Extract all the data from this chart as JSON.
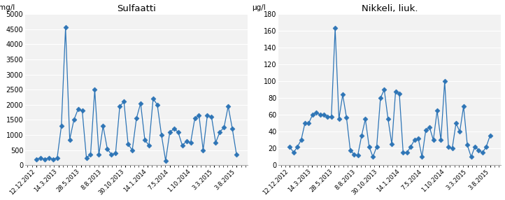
{
  "sulfaatti": {
    "title": "Sulfaatti",
    "ylabel": "mg/l",
    "ylim": [
      0,
      5000
    ],
    "yticks": [
      0,
      500,
      1000,
      1500,
      2000,
      2500,
      3000,
      3500,
      4000,
      4500,
      5000
    ],
    "values": [
      200,
      250,
      200,
      250,
      200,
      250,
      1300,
      4550,
      850,
      1500,
      1850,
      1800,
      250,
      350,
      2500,
      350,
      1300,
      550,
      350,
      400,
      1950,
      2100,
      700,
      500,
      1550,
      2050,
      850,
      650,
      2200,
      2000,
      1000,
      150,
      1100,
      1200,
      1100,
      650,
      800,
      750,
      1550,
      1650,
      500,
      1650,
      1600,
      750,
      1100,
      1250,
      1950,
      1200,
      350
    ]
  },
  "nikkeli": {
    "title": "Nikkeli, liuk.",
    "ylabel": "μg/l",
    "ylim": [
      0,
      180
    ],
    "yticks": [
      0,
      20,
      40,
      60,
      80,
      100,
      120,
      140,
      160,
      180
    ],
    "values": [
      22,
      15,
      22,
      30,
      50,
      50,
      60,
      63,
      60,
      60,
      58,
      58,
      163,
      55,
      84,
      57,
      18,
      13,
      12,
      35,
      55,
      22,
      10,
      22,
      80,
      90,
      55,
      25,
      88,
      85,
      15,
      15,
      22,
      30,
      32,
      10,
      42,
      45,
      30,
      65,
      30,
      100,
      22,
      20,
      50,
      40,
      70,
      24,
      10,
      22,
      18,
      15,
      22,
      35
    ]
  },
  "xtick_labels": [
    "12.12.2012",
    "14.3.2013",
    "28.5.2013",
    "8.8.2013",
    "30.10.2013",
    "14.1.2014",
    "7.5.2014",
    "1.10.2014",
    "3.3.2015",
    "3.8.2015"
  ],
  "line_color": "#2E75B6",
  "marker": "D",
  "markersize": 3.5,
  "bg_color": "#FFFFFF",
  "plot_bg": "#F2F2F2",
  "grid_color": "#FFFFFF"
}
